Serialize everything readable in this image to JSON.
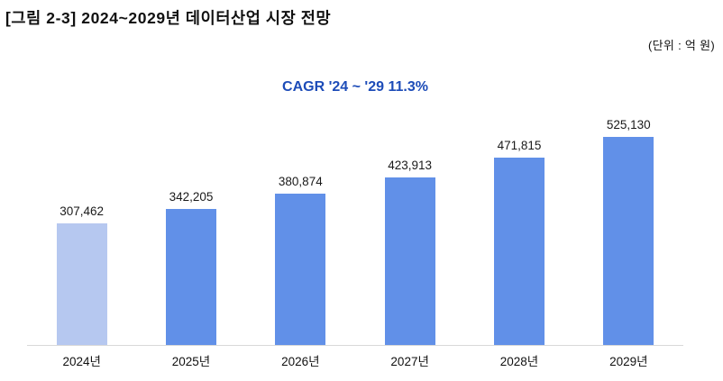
{
  "header": {
    "title": "[그림 2-3] 2024~2029년 데이터산업 시장 전망",
    "unit_label": "(단위 : 억 원)"
  },
  "chart_data": {
    "type": "bar",
    "title": "CAGR '24 ~ '29 11.3%",
    "categories": [
      "2024년",
      "2025년",
      "2026년",
      "2027년",
      "2028년",
      "2029년"
    ],
    "values": [
      307462,
      342205,
      380874,
      423913,
      471815,
      525130
    ],
    "value_labels": [
      "307,462",
      "342,205",
      "380,874",
      "423,913",
      "471,815",
      "525,130"
    ],
    "bar_colors": [
      "#b6c8f0",
      "#6190e8",
      "#6190e8",
      "#6190e8",
      "#6190e8",
      "#6190e8"
    ],
    "cagr_color": "#1d4cb8",
    "unit": "(단위 : 억 원)",
    "ylim": [
      0,
      525130
    ],
    "grid": false,
    "legend": false
  }
}
